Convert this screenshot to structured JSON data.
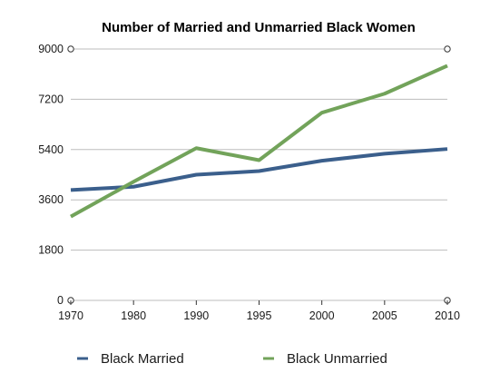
{
  "chart_data": {
    "type": "line",
    "title": "Number of Married and Unmarried Black Women",
    "xlabel": "",
    "ylabel": "",
    "x": [
      "1970",
      "1980",
      "1990",
      "1995",
      "2000",
      "2005",
      "2010"
    ],
    "ylim": [
      0,
      9000
    ],
    "yticks": [
      0,
      1800,
      3600,
      5400,
      7200,
      9000
    ],
    "grid": true,
    "legend_position": "bottom",
    "series": [
      {
        "name": "Black Married",
        "color": "#3b5f8c",
        "values": [
          3950,
          4070,
          4500,
          4630,
          5000,
          5250,
          5420
        ]
      },
      {
        "name": "Black Unmarried",
        "color": "#72a35a",
        "values": [
          3000,
          4250,
          5450,
          5020,
          6720,
          7400,
          8400
        ]
      }
    ]
  }
}
